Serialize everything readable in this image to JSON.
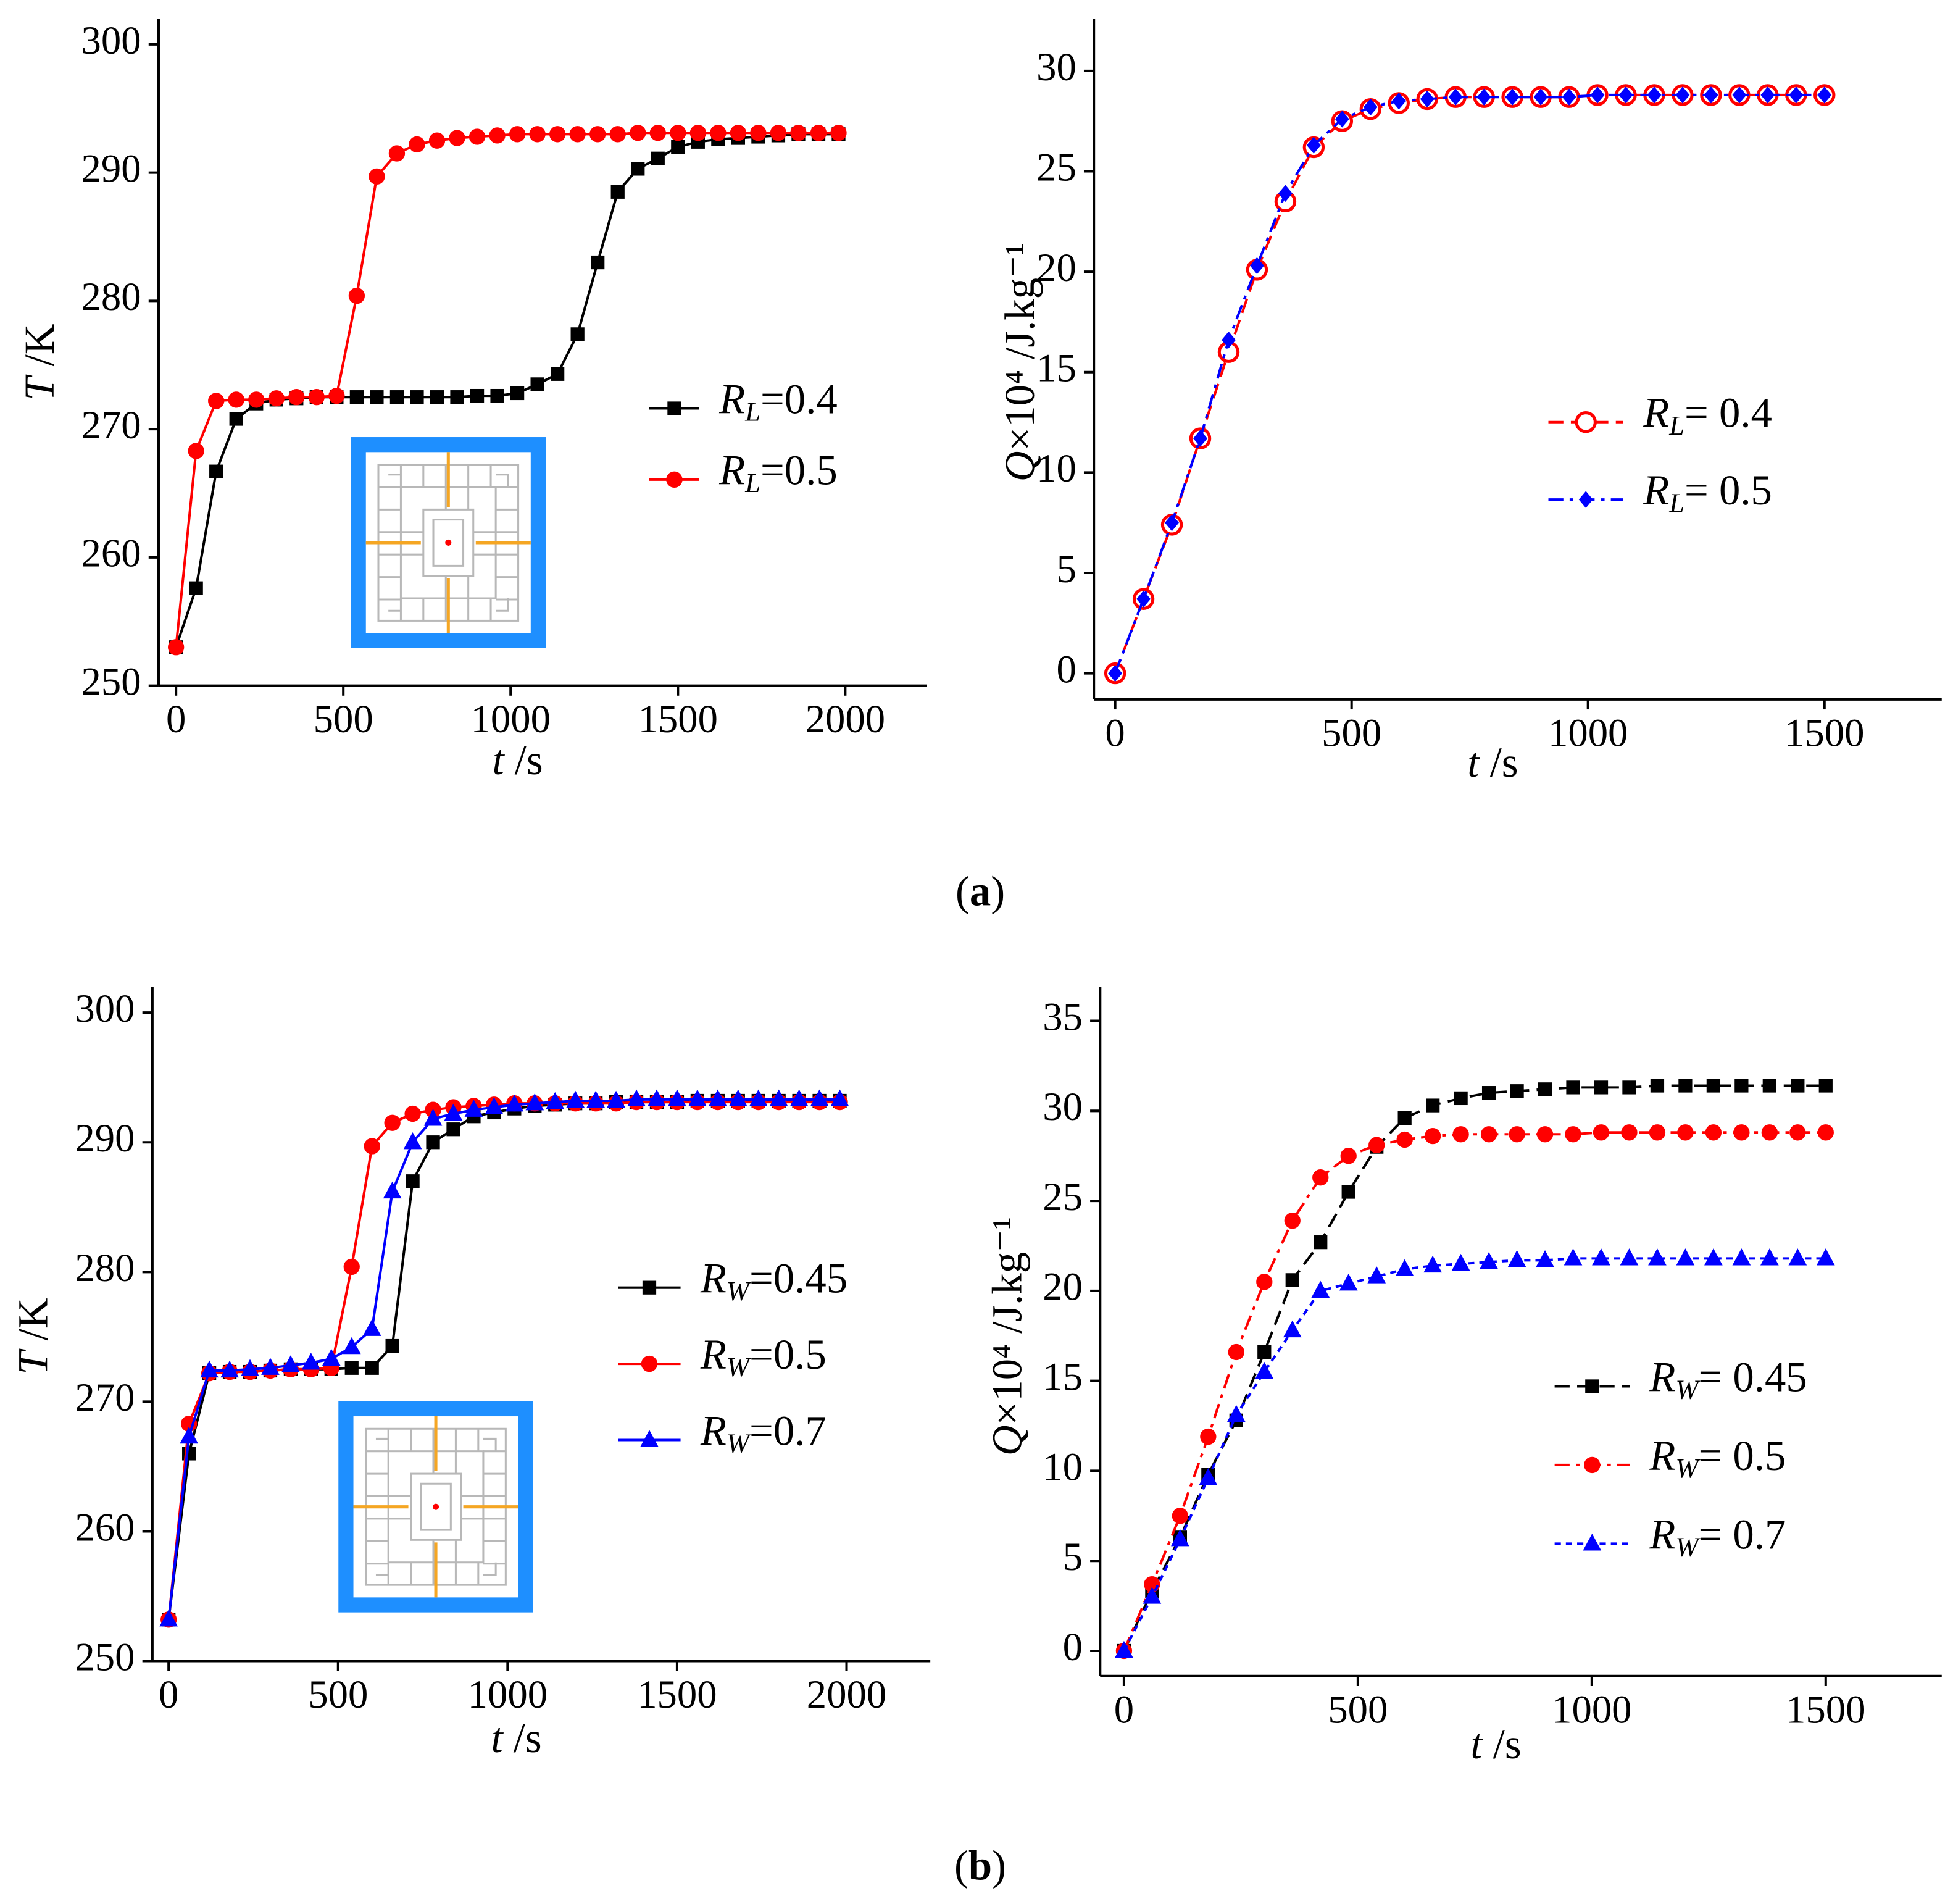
{
  "chart_data": [
    {
      "type": "line",
      "ylabel": "T /K",
      "xlabel": "t /s",
      "xlim": [
        -52,
        2243
      ],
      "ylim": [
        250,
        302
      ],
      "xticks": [
        0,
        500,
        1000,
        1500,
        2000
      ],
      "yticks": [
        250,
        260,
        270,
        280,
        290,
        300
      ],
      "x": [
        0,
        60,
        120,
        180,
        240,
        300,
        360,
        420,
        480,
        540,
        600,
        660,
        720,
        780,
        840,
        900,
        960,
        1020,
        1080,
        1140,
        1200,
        1260,
        1320,
        1380,
        1440,
        1500,
        1560,
        1620,
        1680,
        1740,
        1800,
        1860,
        1920,
        1980
      ],
      "series": [
        {
          "name": "RL=0.4",
          "color": "#000000",
          "marker": "square",
          "marker_fill": "solid",
          "dash": "solid",
          "values": [
            253,
            257.6,
            266.7,
            270.8,
            272.0,
            272.3,
            272.4,
            272.5,
            272.5,
            272.5,
            272.5,
            272.5,
            272.5,
            272.5,
            272.5,
            272.6,
            272.6,
            272.8,
            273.5,
            274.3,
            277.4,
            283.0,
            288.5,
            290.3,
            291.1,
            292.0,
            292.4,
            292.6,
            292.7,
            292.8,
            292.9,
            293.0,
            293.0,
            293.0
          ]
        },
        {
          "name": "RL=0.5",
          "color": "#ff0000",
          "marker": "circle",
          "marker_fill": "solid",
          "dash": "solid",
          "values": [
            253,
            268.3,
            272.2,
            272.3,
            272.3,
            272.4,
            272.5,
            272.5,
            272.6,
            280.4,
            289.7,
            291.5,
            292.2,
            292.5,
            292.7,
            292.8,
            292.9,
            293.0,
            293.0,
            293.0,
            293.0,
            293.0,
            293.0,
            293.1,
            293.1,
            293.1,
            293.1,
            293.1,
            293.1,
            293.1,
            293.1,
            293.1,
            293.1,
            293.1
          ]
        }
      ]
    },
    {
      "type": "line",
      "ylabel": "Q×10⁴ /J.kg⁻¹",
      "xlabel": "t /s",
      "xlim": [
        -45,
        1748
      ],
      "ylim": [
        -1.3,
        32.6
      ],
      "xticks": [
        0,
        500,
        1000,
        1500
      ],
      "yticks": [
        0,
        5,
        10,
        15,
        20,
        25,
        30
      ],
      "x": [
        0,
        60,
        120,
        180,
        240,
        300,
        360,
        420,
        480,
        540,
        600,
        660,
        720,
        780,
        840,
        900,
        960,
        1020,
        1080,
        1140,
        1200,
        1260,
        1320,
        1380,
        1440,
        1500
      ],
      "series": [
        {
          "name": "RL= 0.4",
          "color": "#ff0000",
          "marker": "circle",
          "marker_fill": "open",
          "dash": "dashed",
          "values": [
            0,
            3.7,
            7.4,
            11.7,
            16.0,
            20.1,
            23.5,
            26.2,
            27.5,
            28.1,
            28.4,
            28.6,
            28.7,
            28.7,
            28.7,
            28.7,
            28.7,
            28.8,
            28.8,
            28.8,
            28.8,
            28.8,
            28.8,
            28.8,
            28.8,
            28.8
          ]
        },
        {
          "name": "RL= 0.5",
          "color": "#0000ff",
          "marker": "diamond",
          "marker_fill": "solid",
          "dash": "dashdot",
          "values": [
            0,
            3.7,
            7.5,
            11.7,
            16.6,
            20.3,
            23.9,
            26.3,
            27.6,
            28.2,
            28.5,
            28.6,
            28.7,
            28.7,
            28.7,
            28.7,
            28.7,
            28.8,
            28.8,
            28.8,
            28.8,
            28.8,
            28.8,
            28.8,
            28.8,
            28.8
          ]
        }
      ]
    },
    {
      "type": "line",
      "ylabel": "T /K",
      "xlabel": "t /s",
      "xlim": [
        -48,
        2247
      ],
      "ylim": [
        250,
        302
      ],
      "xticks": [
        0,
        500,
        1000,
        1500,
        2000
      ],
      "yticks": [
        250,
        260,
        270,
        280,
        290,
        300
      ],
      "x": [
        0,
        60,
        120,
        180,
        240,
        300,
        360,
        420,
        480,
        540,
        600,
        660,
        720,
        780,
        840,
        900,
        960,
        1020,
        1080,
        1140,
        1200,
        1260,
        1320,
        1380,
        1440,
        1500,
        1560,
        1620,
        1680,
        1740,
        1800,
        1860,
        1920,
        1980
      ],
      "series": [
        {
          "name": "RW=0.45",
          "color": "#000000",
          "marker": "square",
          "marker_fill": "solid",
          "dash": "solid",
          "values": [
            253.2,
            266.0,
            272.2,
            272.3,
            272.3,
            272.4,
            272.5,
            272.5,
            272.5,
            272.6,
            272.6,
            274.3,
            287.0,
            290.0,
            291.0,
            292.0,
            292.3,
            292.6,
            292.8,
            292.9,
            293.0,
            293.0,
            293.1,
            293.1,
            293.1,
            293.1,
            293.2,
            293.2,
            293.2,
            293.2,
            293.2,
            293.2,
            293.2,
            293.2
          ]
        },
        {
          "name": "RW=0.5",
          "color": "#ff0000",
          "marker": "circle",
          "marker_fill": "solid",
          "dash": "solid",
          "values": [
            253.2,
            268.3,
            272.2,
            272.3,
            272.3,
            272.4,
            272.5,
            272.5,
            272.6,
            280.4,
            289.7,
            291.5,
            292.2,
            292.5,
            292.7,
            292.8,
            292.9,
            293.0,
            293.0,
            293.0,
            293.0,
            293.0,
            293.0,
            293.1,
            293.1,
            293.1,
            293.1,
            293.1,
            293.1,
            293.1,
            293.1,
            293.1,
            293.1,
            293.1
          ]
        },
        {
          "name": "RW=0.7",
          "color": "#0000ff",
          "marker": "triangle",
          "marker_fill": "solid",
          "dash": "solid",
          "values": [
            253.2,
            267.3,
            272.4,
            272.4,
            272.5,
            272.6,
            272.8,
            273.0,
            273.3,
            274.2,
            275.6,
            286.2,
            290.0,
            291.8,
            292.2,
            292.5,
            292.7,
            292.9,
            293.0,
            293.1,
            293.2,
            293.2,
            293.2,
            293.3,
            293.3,
            293.3,
            293.3,
            293.3,
            293.3,
            293.3,
            293.3,
            293.3,
            293.3,
            293.3
          ]
        }
      ]
    },
    {
      "type": "line",
      "ylabel": "Q×10⁴ /J.kg⁻¹",
      "xlabel": "t /s",
      "xlim": [
        -51,
        1748
      ],
      "ylim": [
        -1.4,
        36.9
      ],
      "xticks": [
        0,
        500,
        1000,
        1500
      ],
      "yticks": [
        0,
        5,
        10,
        15,
        20,
        25,
        30,
        35
      ],
      "x": [
        0,
        60,
        120,
        180,
        240,
        300,
        360,
        420,
        480,
        540,
        600,
        660,
        720,
        780,
        840,
        900,
        960,
        1020,
        1080,
        1140,
        1200,
        1260,
        1320,
        1380,
        1440,
        1500
      ],
      "series": [
        {
          "name": "RW= 0.45",
          "color": "#000000",
          "marker": "square",
          "marker_fill": "solid",
          "dash": "dashed",
          "values": [
            0,
            3.3,
            6.3,
            9.8,
            12.8,
            16.6,
            20.6,
            22.7,
            25.5,
            28.0,
            29.6,
            30.3,
            30.7,
            31.0,
            31.1,
            31.2,
            31.3,
            31.3,
            31.3,
            31.4,
            31.4,
            31.4,
            31.4,
            31.4,
            31.4,
            31.4
          ]
        },
        {
          "name": "RW= 0.5",
          "color": "#ff0000",
          "marker": "circle",
          "marker_fill": "solid",
          "dash": "dashdot",
          "values": [
            0,
            3.7,
            7.5,
            11.9,
            16.6,
            20.5,
            23.9,
            26.3,
            27.5,
            28.1,
            28.4,
            28.6,
            28.7,
            28.7,
            28.7,
            28.7,
            28.7,
            28.8,
            28.8,
            28.8,
            28.8,
            28.8,
            28.8,
            28.8,
            28.8,
            28.8
          ]
        },
        {
          "name": "RW= 0.7",
          "color": "#0000ff",
          "marker": "triangle",
          "marker_fill": "solid",
          "dash": "dot",
          "values": [
            0,
            3.0,
            6.2,
            9.6,
            13.1,
            15.5,
            17.8,
            20.0,
            20.4,
            20.8,
            21.2,
            21.4,
            21.5,
            21.6,
            21.7,
            21.7,
            21.8,
            21.8,
            21.8,
            21.8,
            21.8,
            21.8,
            21.8,
            21.8,
            21.8,
            21.8
          ]
        }
      ]
    }
  ],
  "panel_labels": [
    "(a)",
    "(b)"
  ]
}
